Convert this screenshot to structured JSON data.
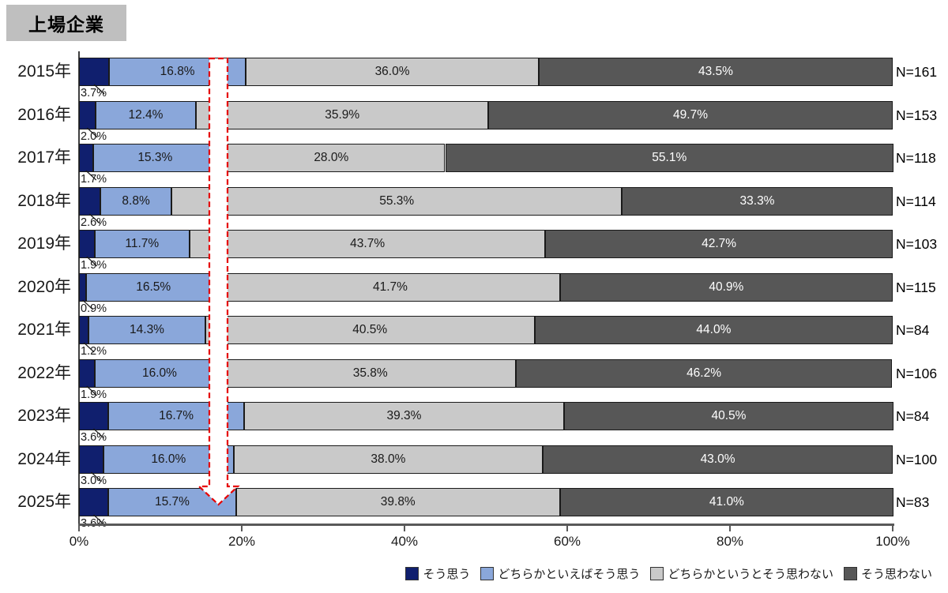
{
  "title_badge": "上場企業",
  "colors": {
    "strongly_agree": "#101f6e",
    "lean_agree": "#8aa7da",
    "lean_disagree": "#c9c9c9",
    "disagree": "#575757",
    "badge_bg": "#bfbfbf",
    "arrow": "#e60000",
    "axis": "#595959"
  },
  "x_axis": {
    "tick_labels": [
      "0%",
      "20%",
      "40%",
      "60%",
      "80%",
      "100%"
    ]
  },
  "legend": [
    {
      "key": "strongly-agree",
      "label": "そう思う",
      "color": "#101f6e"
    },
    {
      "key": "lean-agree",
      "label": "どちらかといえばそう思う",
      "color": "#8aa7da"
    },
    {
      "key": "lean-disagree",
      "label": "どちらかというとそう思わない",
      "color": "#c9c9c9"
    },
    {
      "key": "disagree",
      "label": "そう思わない",
      "color": "#575757"
    }
  ],
  "chart_data": {
    "type": "bar",
    "stacked": true,
    "orientation": "horizontal",
    "title": "上場企業",
    "xlim": [
      0,
      100
    ],
    "x_ticks": [
      "0%",
      "20%",
      "40%",
      "60%",
      "80%",
      "100%"
    ],
    "legend_position": "bottom-right",
    "categories": [
      "2015年",
      "2016年",
      "2017年",
      "2018年",
      "2019年",
      "2020年",
      "2021年",
      "2022年",
      "2023年",
      "2024年",
      "2025年"
    ],
    "n_labels": [
      "N=161",
      "N=153",
      "N=118",
      "N=114",
      "N=103",
      "N=115",
      "N=84",
      "N=106",
      "N=84",
      "N=100",
      "N=83"
    ],
    "series": [
      {
        "name": "そう思う",
        "key": "strongly-agree",
        "color": "#101f6e",
        "label_outside_below": true,
        "values": [
          3.7,
          2.0,
          1.7,
          2.6,
          1.9,
          0.9,
          1.2,
          1.9,
          3.6,
          3.0,
          3.6
        ]
      },
      {
        "name": "どちらかといえばそう思う",
        "key": "lean-agree",
        "color": "#8aa7da",
        "label_color": "#1a1a1a",
        "values": [
          16.8,
          12.4,
          15.3,
          8.8,
          11.7,
          16.5,
          14.3,
          16.0,
          16.7,
          16.0,
          15.7
        ]
      },
      {
        "name": "どちらかというとそう思わない",
        "key": "lean-disagree",
        "color": "#c9c9c9",
        "label_color": "#1a1a1a",
        "values": [
          36.0,
          35.9,
          28.0,
          55.3,
          43.7,
          41.7,
          40.5,
          35.8,
          39.3,
          38.0,
          39.8
        ]
      },
      {
        "name": "そう思わない",
        "key": "disagree",
        "color": "#575757",
        "label_color": "#ffffff",
        "values": [
          43.5,
          49.7,
          55.1,
          33.3,
          42.7,
          40.9,
          44.0,
          46.2,
          40.5,
          43.0,
          41.0
        ]
      }
    ],
    "annotation": {
      "type": "down-arrow",
      "style": "dashed-outline-white-fill",
      "color": "#e60000",
      "x_percent": 17.2
    }
  }
}
